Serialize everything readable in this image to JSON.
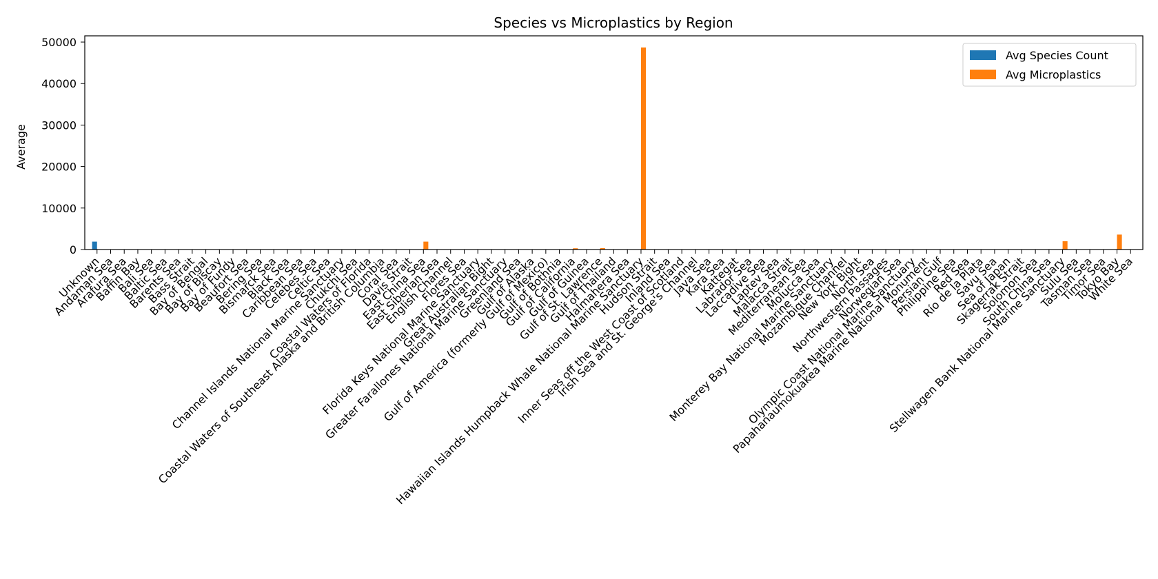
{
  "chart_data": {
    "type": "bar",
    "title": "Species vs Microplastics by Region",
    "xlabel": "",
    "ylabel": "Average",
    "ylim": [
      0,
      51500
    ],
    "yticks": [
      0,
      10000,
      20000,
      30000,
      40000,
      50000
    ],
    "grid": false,
    "legend_position": "top-right",
    "categories": [
      "Unknown",
      "Andaman Sea",
      "Arafura Sea",
      "Baffin Bay",
      "Bali Sea",
      "Baltic Sea",
      "Barents Sea",
      "Bass Strait",
      "Bay of Bengal",
      "Bay of Biscay",
      "Bay of Fundy",
      "Beaufort Sea",
      "Bering Sea",
      "Bismarck Sea",
      "Black Sea",
      "Caribbean Sea",
      "Celebes Sea",
      "Celtic Sea",
      "Channel Islands National Marine Sanctuary",
      "Chukchi Sea",
      "Coastal Waters of Florida",
      "Coastal Waters of Southeast Alaska and British Columbia",
      "Coral Sea",
      "Davis Strait",
      "East China Sea",
      "East Siberian Sea",
      "English Channel",
      "Flores Sea",
      "Florida Keys National Marine Sanctuary",
      "Great Australian Bight",
      "Greater Farallones National Marine Sanctuary",
      "Greenland Sea",
      "Gulf of Alaska",
      "Gulf of America (formerly Gulf of Mexico)",
      "Gulf of Bothnia",
      "Gulf of California",
      "Gulf of Guinea",
      "Gulf of St. Lawrence",
      "Gulf of Thailand",
      "Halmahera Sea",
      "Hawaiian Islands Humpback Whale National Marine Sanctuary",
      "Hudson Strait",
      "Inland Sea",
      "Inner Seas off the West Coast of Scotland",
      "Irish Sea and St. George's Channel",
      "Java Sea",
      "Kara Sea",
      "Kattegat",
      "Labrador Sea",
      "Laccadive Sea",
      "Laptev Sea",
      "Malacca Strait",
      "Mediterranean Sea",
      "Molucca Sea",
      "Monterey Bay National Marine Sanctuary",
      "Mozambique Channel",
      "New York Bight",
      "North Sea",
      "Northwestern Passages",
      "Norwegian Sea",
      "Olympic Coast National Marine Sanctuary",
      "Papahanaumokuakea Marine National Monument",
      "Persian Gulf",
      "Philippine Sea",
      "Red Sea",
      "Río de la Plata",
      "Savu Sea",
      "Sea of Japan",
      "Skagerrak Strait",
      "Solomon Sea",
      "South China Sea",
      "Stellwagen Bank National Marine Sanctuary",
      "Sulu Sea",
      "Tasman Sea",
      "Timor Sea",
      "Tokyo Bay",
      "White Sea"
    ],
    "series": [
      {
        "name": "Avg Species Count",
        "color": "#1f77b4",
        "values": [
          1900,
          5,
          5,
          5,
          5,
          5,
          5,
          5,
          5,
          5,
          5,
          5,
          5,
          5,
          5,
          5,
          5,
          5,
          5,
          5,
          5,
          5,
          5,
          5,
          5,
          5,
          5,
          5,
          5,
          5,
          5,
          5,
          5,
          5,
          5,
          5,
          5,
          5,
          5,
          5,
          5,
          5,
          5,
          5,
          5,
          5,
          5,
          5,
          5,
          5,
          5,
          5,
          5,
          5,
          5,
          5,
          5,
          5,
          5,
          5,
          5,
          5,
          5,
          5,
          5,
          5,
          5,
          5,
          5,
          5,
          5,
          5,
          5,
          5,
          5,
          5,
          5
        ]
      },
      {
        "name": "Avg Microplastics",
        "color": "#ff7f0e",
        "values": [
          0,
          20,
          20,
          20,
          20,
          20,
          20,
          20,
          20,
          20,
          20,
          20,
          20,
          20,
          20,
          20,
          20,
          20,
          20,
          20,
          20,
          20,
          20,
          20,
          1900,
          20,
          20,
          20,
          20,
          20,
          20,
          20,
          20,
          20,
          20,
          300,
          20,
          350,
          20,
          20,
          48700,
          20,
          20,
          20,
          20,
          20,
          20,
          20,
          20,
          20,
          20,
          20,
          20,
          20,
          20,
          20,
          20,
          20,
          20,
          20,
          20,
          20,
          20,
          20,
          20,
          20,
          20,
          20,
          20,
          20,
          20,
          2000,
          20,
          20,
          20,
          3600,
          20
        ]
      }
    ]
  }
}
